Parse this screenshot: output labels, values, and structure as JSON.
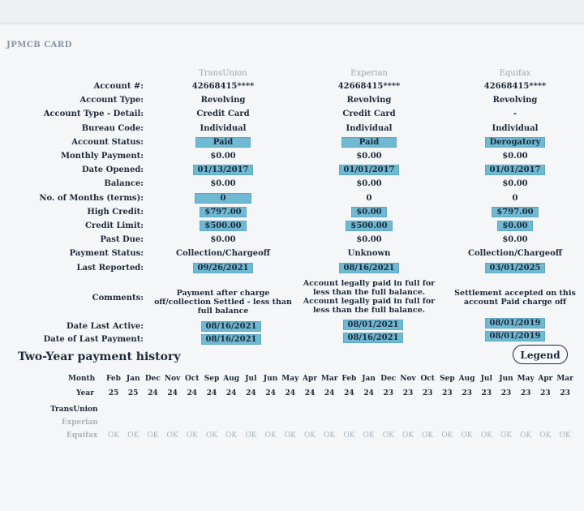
{
  "card_title": "JPMCB CARD",
  "bureaus": [
    "TransUnion",
    "Experian",
    "Equifax"
  ],
  "rows": [
    {
      "label": "Account #:",
      "values": [
        "42668415****",
        "42668415****",
        "42668415****"
      ],
      "hl": [
        false,
        false,
        false
      ]
    },
    {
      "label": "Account Type:",
      "values": [
        "Revolving",
        "Revolving",
        "Revolving"
      ],
      "hl": [
        false,
        false,
        false
      ]
    },
    {
      "label": "Account Type - Detail:",
      "values": [
        "Credit Card",
        "Credit Card",
        "-"
      ],
      "hl": [
        false,
        false,
        false
      ]
    },
    {
      "label": "Bureau Code:",
      "values": [
        "Individual",
        "Individual",
        "Individual"
      ],
      "hl": [
        false,
        false,
        false
      ]
    },
    {
      "label": "Account Status:",
      "values": [
        "Paid",
        "Paid",
        "Derogatory"
      ],
      "hl": [
        true,
        true,
        true
      ]
    },
    {
      "label": "Monthly Payment:",
      "values": [
        "$0.00",
        "$0.00",
        "$0.00"
      ],
      "hl": [
        false,
        false,
        false
      ]
    },
    {
      "label": "Date Opened:",
      "values": [
        "01/13/2017",
        "01/01/2017",
        "01/01/2017"
      ],
      "hl": [
        true,
        true,
        true
      ]
    },
    {
      "label": "Balance:",
      "values": [
        "$0.00",
        "$0.00",
        "$0.00"
      ],
      "hl": [
        false,
        false,
        false
      ]
    },
    {
      "label": "No. of Months (terms):",
      "values": [
        "0",
        "0",
        "0"
      ],
      "hl": [
        true,
        false,
        false
      ]
    },
    {
      "label": "High Credit:",
      "values": [
        "$797.00",
        "$0.00",
        "$797.00"
      ],
      "hl": [
        true,
        true,
        true
      ]
    },
    {
      "label": "Credit Limit:",
      "values": [
        "$500.00",
        "$500.00",
        "$0.00"
      ],
      "hl": [
        true,
        true,
        true
      ]
    },
    {
      "label": "Past Due:",
      "values": [
        "$0.00",
        "$0.00",
        "$0.00"
      ],
      "hl": [
        false,
        false,
        false
      ]
    },
    {
      "label": "Payment Status:",
      "values": [
        "Collection/Chargeoff",
        "Unknown",
        "Collection/Chargeoff"
      ],
      "hl": [
        false,
        false,
        false
      ]
    },
    {
      "label": "Last Reported:",
      "values": [
        "09/26/2021",
        "08/16/2021",
        "03/01/2025"
      ],
      "hl": [
        true,
        true,
        true
      ]
    }
  ],
  "comments": {
    "label": "Comments:",
    "values": [
      "Payment after charge off/collection Settled - less than full balance",
      "Account legally paid in full for less than the full balance. Account legally paid in full for less than the full balance.",
      "Settlement accepted on this account Paid charge off"
    ]
  },
  "date_last_active": {
    "label": "Date Last Active:",
    "values": [
      "08/16/2021",
      "08/01/2021",
      "08/01/2019"
    ]
  },
  "date_last_payment": {
    "label": "Date of Last Payment:",
    "values": [
      "08/16/2021",
      "08/16/2021",
      "08/01/2019"
    ]
  },
  "history": {
    "title": "Two-Year payment history",
    "legend_label": "Legend",
    "month_label": "Month",
    "year_label": "Year",
    "months": [
      "Feb",
      "Jan",
      "Dec",
      "Nov",
      "Oct",
      "Sep",
      "Aug",
      "Jul",
      "Jun",
      "May",
      "Apr",
      "Mar",
      "Feb",
      "Jan",
      "Dec",
      "Nov",
      "Oct",
      "Sep",
      "Aug",
      "Jul",
      "Jun",
      "May",
      "Apr",
      "Mar"
    ],
    "years": [
      "25",
      "25",
      "24",
      "24",
      "24",
      "24",
      "24",
      "24",
      "24",
      "24",
      "24",
      "24",
      "24",
      "24",
      "23",
      "23",
      "23",
      "23",
      "23",
      "23",
      "23",
      "23",
      "23",
      "23"
    ],
    "bureau_rows": [
      {
        "name": "TransUnion",
        "cells": []
      },
      {
        "name": "Experian",
        "cells": []
      },
      {
        "name": "Equifax",
        "cells": [
          "OK",
          "OK",
          "OK",
          "OK",
          "OK",
          "OK",
          "OK",
          "OK",
          "OK",
          "OK",
          "OK",
          "OK",
          "OK",
          "OK",
          "OK",
          "OK",
          "OK",
          "OK",
          "OK",
          "OK",
          "OK",
          "OK",
          "OK",
          "OK"
        ]
      }
    ]
  }
}
